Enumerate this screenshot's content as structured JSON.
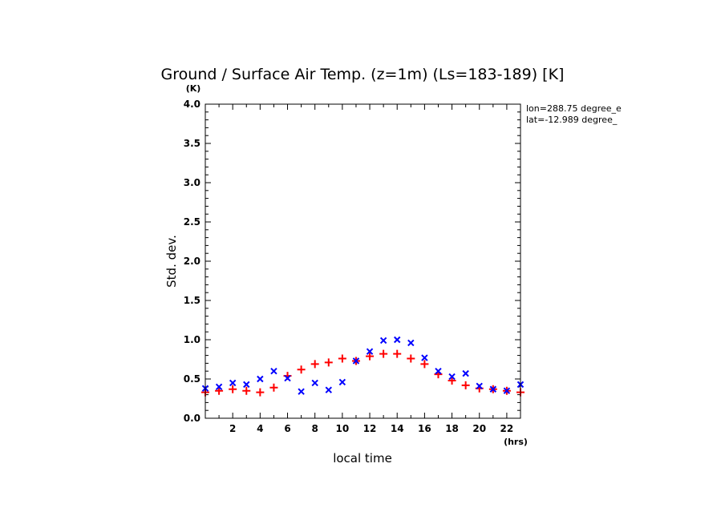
{
  "chart_data": {
    "type": "scatter",
    "title": "Ground / Surface Air Temp. (z=1m) (Ls=183-189) [K]",
    "xlabel": "local time",
    "ylabel": "Std. dev.",
    "x_unit": "(hrs)",
    "y_unit": "(K)",
    "xlim": [
      0,
      23
    ],
    "ylim": [
      0,
      4
    ],
    "x_ticks": [
      2,
      4,
      6,
      8,
      10,
      12,
      14,
      16,
      18,
      20,
      22
    ],
    "x_tick_labels": [
      "2",
      "4",
      "6",
      "8",
      "10",
      "12",
      "14",
      "16",
      "18",
      "20",
      "22"
    ],
    "y_ticks": [
      0,
      0.5,
      1,
      1.5,
      2,
      2.5,
      3,
      3.5,
      4
    ],
    "y_tick_labels": [
      "0.0",
      "0.5",
      "1.0",
      "1.5",
      "2.0",
      "2.5",
      "3.0",
      "3.5",
      "4.0"
    ],
    "grid": false,
    "annotations": [
      "lon=288.75 degree_e",
      "lat=-12.989 degree_"
    ],
    "x": [
      0,
      1,
      2,
      3,
      4,
      5,
      6,
      7,
      8,
      9,
      10,
      11,
      12,
      13,
      14,
      15,
      16,
      17,
      18,
      19,
      20,
      21,
      22,
      23
    ],
    "series": [
      {
        "marker": "plus",
        "color": "#ff0000",
        "values": [
          0.33,
          0.35,
          0.37,
          0.35,
          0.33,
          0.39,
          0.54,
          0.62,
          0.69,
          0.71,
          0.76,
          0.73,
          0.79,
          0.82,
          0.82,
          0.76,
          0.69,
          0.56,
          0.48,
          0.42,
          0.38,
          0.37,
          0.35,
          0.33
        ]
      },
      {
        "marker": "cross",
        "color": "#0000ff",
        "values": [
          0.38,
          0.4,
          0.45,
          0.43,
          0.5,
          0.6,
          0.51,
          0.34,
          0.45,
          0.36,
          0.46,
          0.73,
          0.85,
          0.99,
          1.0,
          0.96,
          0.77,
          0.6,
          0.53,
          0.57,
          0.41,
          0.37,
          0.35,
          0.43
        ]
      }
    ]
  }
}
